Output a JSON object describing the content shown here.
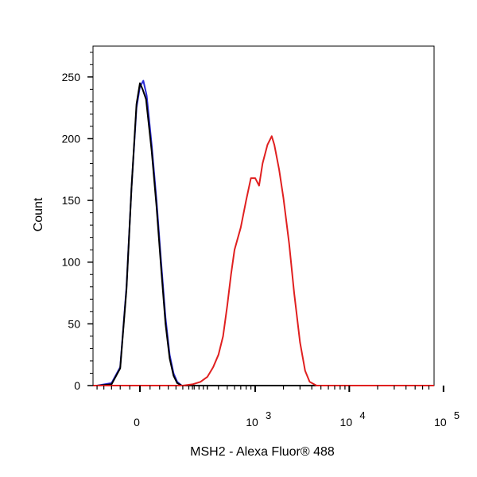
{
  "chart_data": {
    "type": "line",
    "subtype": "flow-cytometry-histogram",
    "title": "",
    "xlabel": "MSH2 - Alexa Fluor® 488",
    "ylabel": "Count",
    "x_scale": "biexponential",
    "x_ticks": [
      {
        "value": 0,
        "base": "0",
        "exp": ""
      },
      {
        "value": 1000,
        "base": "10",
        "exp": "3"
      },
      {
        "value": 10000,
        "base": "10",
        "exp": "4"
      },
      {
        "value": 100000,
        "base": "10",
        "exp": "5"
      }
    ],
    "y_ticks": [
      0,
      50,
      100,
      150,
      200,
      250
    ],
    "ylim": [
      0,
      275
    ],
    "grid": false,
    "legend": "none",
    "series": [
      {
        "color": "#2b2bd6",
        "points": [
          [
            -260,
            0
          ],
          [
            -150,
            0
          ],
          [
            -90,
            2
          ],
          [
            -60,
            15
          ],
          [
            -40,
            80
          ],
          [
            -25,
            160
          ],
          [
            -10,
            225
          ],
          [
            0,
            242
          ],
          [
            10,
            247
          ],
          [
            20,
            235
          ],
          [
            35,
            195
          ],
          [
            50,
            150
          ],
          [
            65,
            100
          ],
          [
            80,
            55
          ],
          [
            95,
            25
          ],
          [
            110,
            10
          ],
          [
            125,
            3
          ],
          [
            145,
            0
          ],
          [
            200,
            0
          ],
          [
            100000,
            0
          ],
          [
            200000,
            0
          ]
        ]
      },
      {
        "color": "#000000",
        "points": [
          [
            -260,
            0
          ],
          [
            -150,
            0
          ],
          [
            -90,
            1
          ],
          [
            -60,
            14
          ],
          [
            -40,
            78
          ],
          [
            -25,
            160
          ],
          [
            -10,
            228
          ],
          [
            0,
            245
          ],
          [
            8,
            240
          ],
          [
            18,
            232
          ],
          [
            35,
            190
          ],
          [
            50,
            145
          ],
          [
            65,
            95
          ],
          [
            80,
            50
          ],
          [
            95,
            22
          ],
          [
            110,
            8
          ],
          [
            125,
            2
          ],
          [
            145,
            0
          ],
          [
            200,
            0
          ],
          [
            100000,
            0
          ],
          [
            200000,
            0
          ]
        ]
      },
      {
        "color": "#e02020",
        "points": [
          [
            -260,
            0
          ],
          [
            150,
            0
          ],
          [
            200,
            1
          ],
          [
            250,
            3
          ],
          [
            300,
            7
          ],
          [
            350,
            15
          ],
          [
            400,
            25
          ],
          [
            450,
            40
          ],
          [
            500,
            65
          ],
          [
            550,
            90
          ],
          [
            600,
            110
          ],
          [
            700,
            128
          ],
          [
            800,
            150
          ],
          [
            900,
            168
          ],
          [
            1000,
            168
          ],
          [
            1100,
            162
          ],
          [
            1200,
            180
          ],
          [
            1350,
            195
          ],
          [
            1500,
            202
          ],
          [
            1600,
            195
          ],
          [
            1800,
            175
          ],
          [
            2000,
            152
          ],
          [
            2300,
            115
          ],
          [
            2600,
            75
          ],
          [
            3000,
            35
          ],
          [
            3400,
            12
          ],
          [
            3800,
            3
          ],
          [
            4500,
            0
          ],
          [
            100000,
            0
          ],
          [
            200000,
            0
          ]
        ]
      }
    ]
  }
}
